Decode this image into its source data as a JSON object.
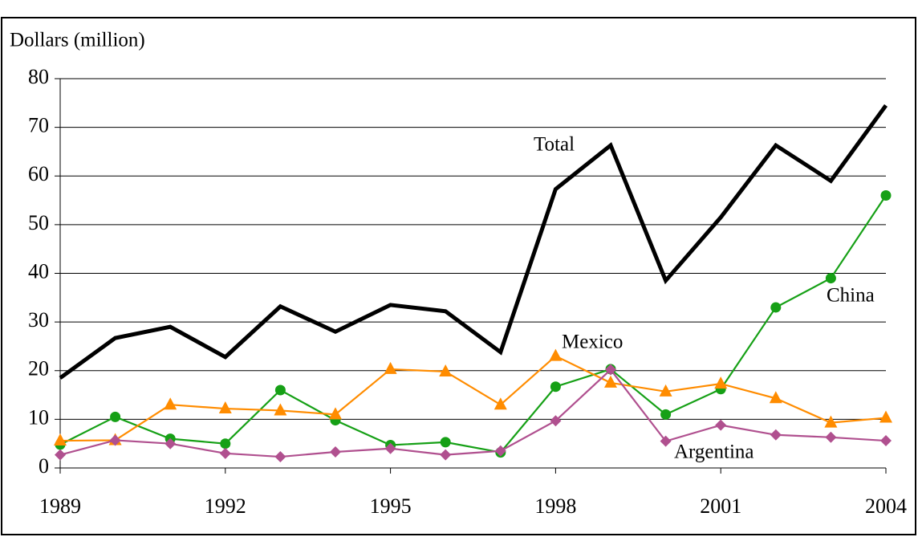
{
  "chart_data": {
    "type": "line",
    "y_axis_label": "Dollars (million)",
    "x": [
      1989,
      1990,
      1991,
      1992,
      1993,
      1994,
      1995,
      1996,
      1997,
      1998,
      1999,
      2000,
      2001,
      2002,
      2003,
      2004
    ],
    "xlim": [
      1989,
      2004
    ],
    "xticks": [
      1989,
      1992,
      1995,
      1998,
      2001,
      2004
    ],
    "ylim": [
      0,
      80
    ],
    "yticks": [
      0,
      10,
      20,
      30,
      40,
      50,
      60,
      70,
      80
    ],
    "grid": true,
    "series": [
      {
        "name": "Total",
        "color": "#000000",
        "marker": "none",
        "values": [
          18.5,
          26.7,
          29,
          22.8,
          33.2,
          28,
          33.5,
          32.2,
          23.8,
          57.3,
          66.3,
          38.5,
          51.5,
          66.3,
          59,
          74.5
        ]
      },
      {
        "name": "China",
        "color": "#16a016",
        "marker": "circle",
        "values": [
          4.8,
          10.5,
          6,
          5,
          16,
          9.8,
          4.7,
          5.3,
          3.2,
          16.7,
          20.3,
          11,
          16.2,
          33,
          39,
          56
        ]
      },
      {
        "name": "Mexico",
        "color": "#ff8c00",
        "marker": "triangle",
        "values": [
          5.6,
          5.7,
          13,
          12.2,
          11.8,
          11,
          20.3,
          19.8,
          13,
          23,
          17.5,
          15.7,
          17.3,
          14.3,
          9.3,
          10.3
        ]
      },
      {
        "name": "Argentina",
        "color": "#b0508f",
        "marker": "diamond",
        "values": [
          2.7,
          5.7,
          5,
          3,
          2.3,
          3.3,
          4,
          2.7,
          3.5,
          9.7,
          20.2,
          5.5,
          8.8,
          6.8,
          6.3,
          5.6
        ]
      }
    ]
  }
}
